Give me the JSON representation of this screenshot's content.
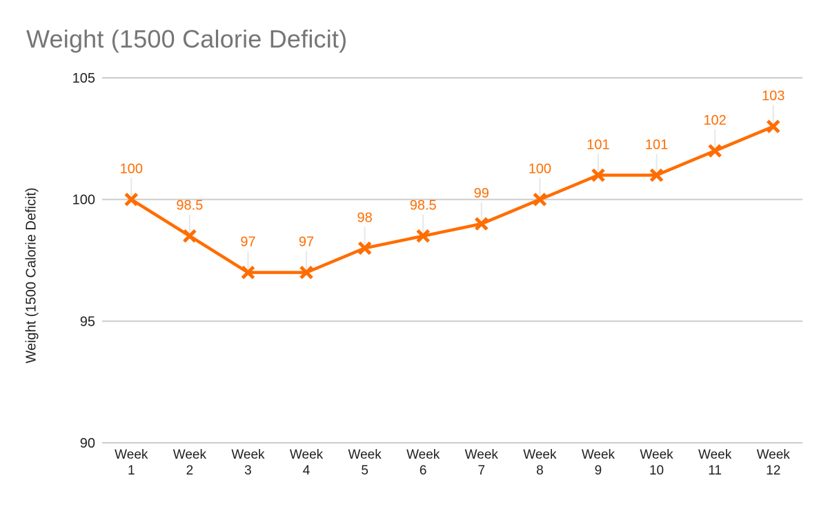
{
  "title": "Weight (1500 Calorie Deficit)",
  "chart_data": {
    "type": "line",
    "title": "Weight (1500 Calorie Deficit)",
    "categories": [
      "Week 1",
      "Week 2",
      "Week 3",
      "Week 4",
      "Week 5",
      "Week 6",
      "Week 7",
      "Week 8",
      "Week 9",
      "Week 10",
      "Week 11",
      "Week 12"
    ],
    "series": [
      {
        "name": "Weight (1500 Calorie Deficit)",
        "values": [
          100,
          98.5,
          97,
          97,
          98,
          98.5,
          99,
          100,
          101,
          101,
          102,
          103
        ],
        "data_labels": [
          "100",
          "98.5",
          "97",
          "97",
          "98",
          "98.5",
          "99",
          "100",
          "101",
          "101",
          "102",
          "103"
        ],
        "color": "#FF6D01",
        "marker": "x"
      }
    ],
    "xlabel": "",
    "ylabel": "Weight (1500 Calorie Deficit)",
    "ylim": [
      90,
      105
    ],
    "yticks": [
      105,
      100,
      95,
      90
    ],
    "grid": true,
    "legend_position": "none"
  },
  "colors": {
    "background": "#FFFFFF",
    "title_text": "#757575",
    "axis_text": "#1F1F1F",
    "gridline": "#CCCCCC",
    "leader_line": "#E7E7E7",
    "series_orange": "#FF6D01"
  }
}
